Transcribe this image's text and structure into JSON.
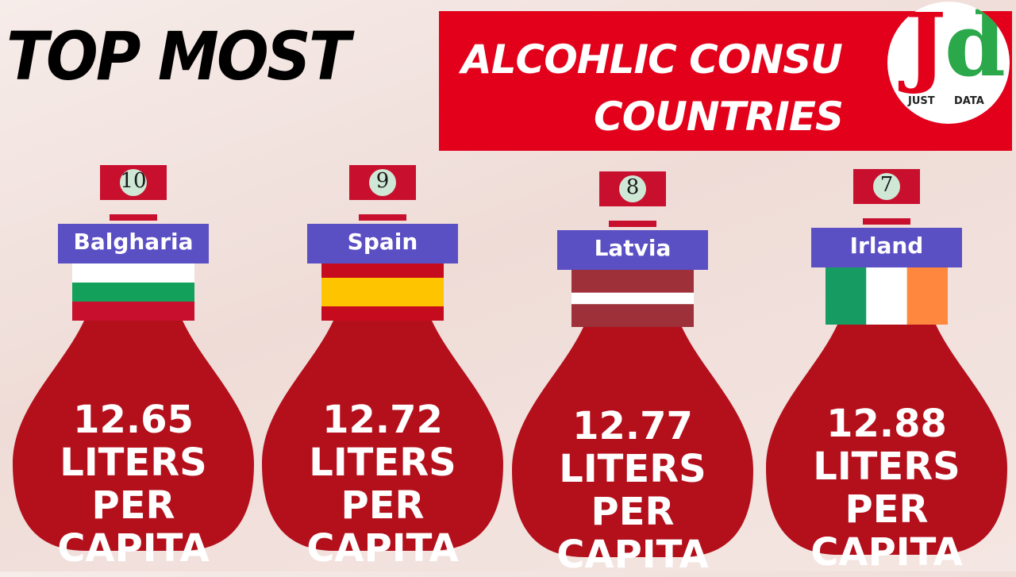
{
  "header": {
    "title_left": "TOP MOST",
    "title_right_line1": "ALCOHLIC CONSU",
    "title_right_line2": "COUNTRIES"
  },
  "logo": {
    "letter1": "J",
    "letter2": "d",
    "word1": "JUST",
    "word2": "DATA"
  },
  "items": [
    {
      "rank": 10,
      "country": "Balgharia",
      "value": 12.65,
      "unit": "LITERS PER CAPITA"
    },
    {
      "rank": 9,
      "country": "Spain",
      "value": 12.72,
      "unit": "LITERS PER CAPITA"
    },
    {
      "rank": 8,
      "country": "Latvia",
      "value": 12.77,
      "unit": "LITERS PER CAPITA"
    },
    {
      "rank": 7,
      "country": "Irland",
      "value": 12.88,
      "unit": "LITERS PER CAPITA"
    }
  ]
}
